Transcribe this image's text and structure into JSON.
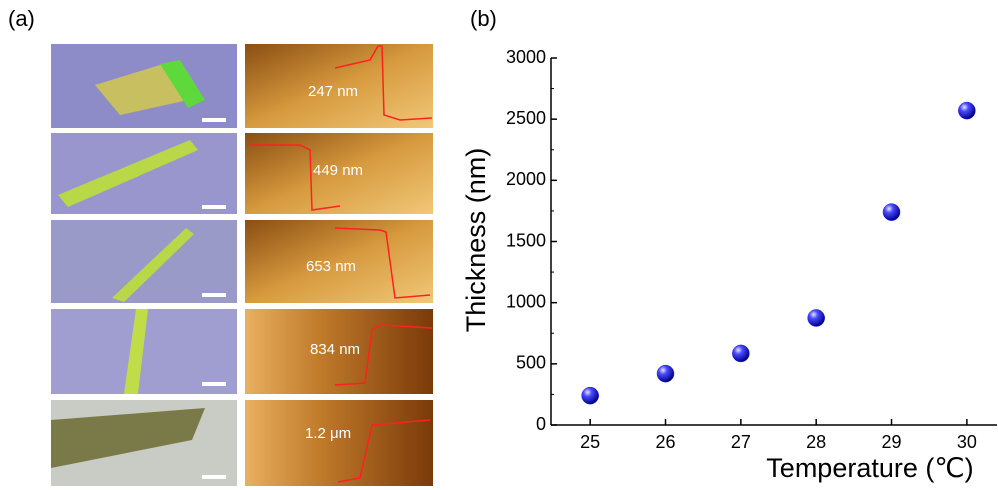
{
  "panel_labels": [
    "(a)",
    "(b)"
  ],
  "images": [
    {
      "label": "247 nm"
    },
    {
      "label": "449 nm"
    },
    {
      "label": "653 nm"
    },
    {
      "label": "834 nm"
    },
    {
      "label": "1.2 μm"
    }
  ],
  "chart_data": {
    "type": "scatter",
    "x": [
      25,
      26,
      27,
      28,
      29,
      30
    ],
    "values": [
      240,
      420,
      585,
      875,
      1740,
      2570
    ],
    "color": "#1a1aff",
    "xlabel": "Temperature (℃)",
    "ylabel": "Thickness (nm)",
    "xlim": [
      24.48,
      30.4
    ],
    "ylim": [
      0,
      3000
    ],
    "xticks": [
      25,
      26,
      27,
      28,
      29,
      30
    ],
    "yticks": [
      0,
      500,
      1000,
      1500,
      2000,
      2500,
      3000
    ]
  }
}
